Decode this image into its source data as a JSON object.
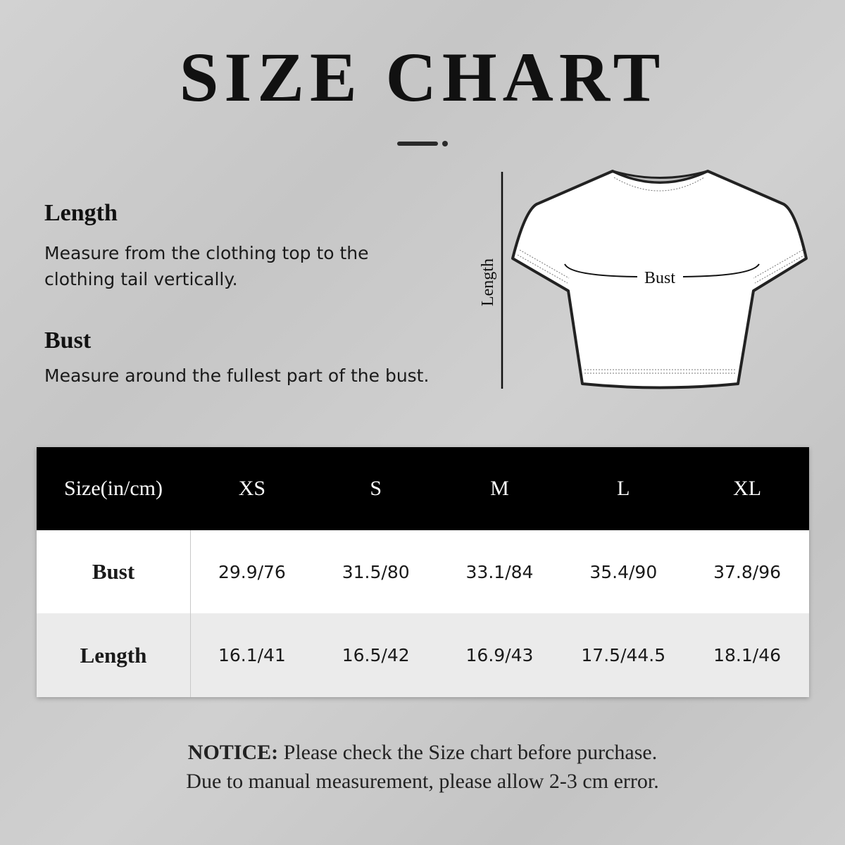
{
  "title": "SIZE CHART",
  "length": {
    "heading": "Length",
    "line1": "Measure from the clothing top to the",
    "line2": "clothing tail vertically."
  },
  "bust": {
    "heading": "Bust",
    "text": "Measure around the fullest part of the bust."
  },
  "diagram": {
    "length_label": "Length",
    "bust_label": "Bust"
  },
  "table": {
    "headers": [
      "Size(in/cm)",
      "XS",
      "S",
      "M",
      "L",
      "XL"
    ],
    "rows": [
      {
        "label": "Bust",
        "values": [
          "29.9/76",
          "31.5/80",
          "33.1/84",
          "35.4/90",
          "37.8/96"
        ]
      },
      {
        "label": "Length",
        "values": [
          "16.1/41",
          "16.5/42",
          "16.9/43",
          "17.5/44.5",
          "18.1/46"
        ]
      }
    ]
  },
  "notice": {
    "label": "NOTICE:",
    "line1": " Please check the Size chart before purchase.",
    "line2": "Due to manual measurement, please allow 2-3 cm error."
  }
}
